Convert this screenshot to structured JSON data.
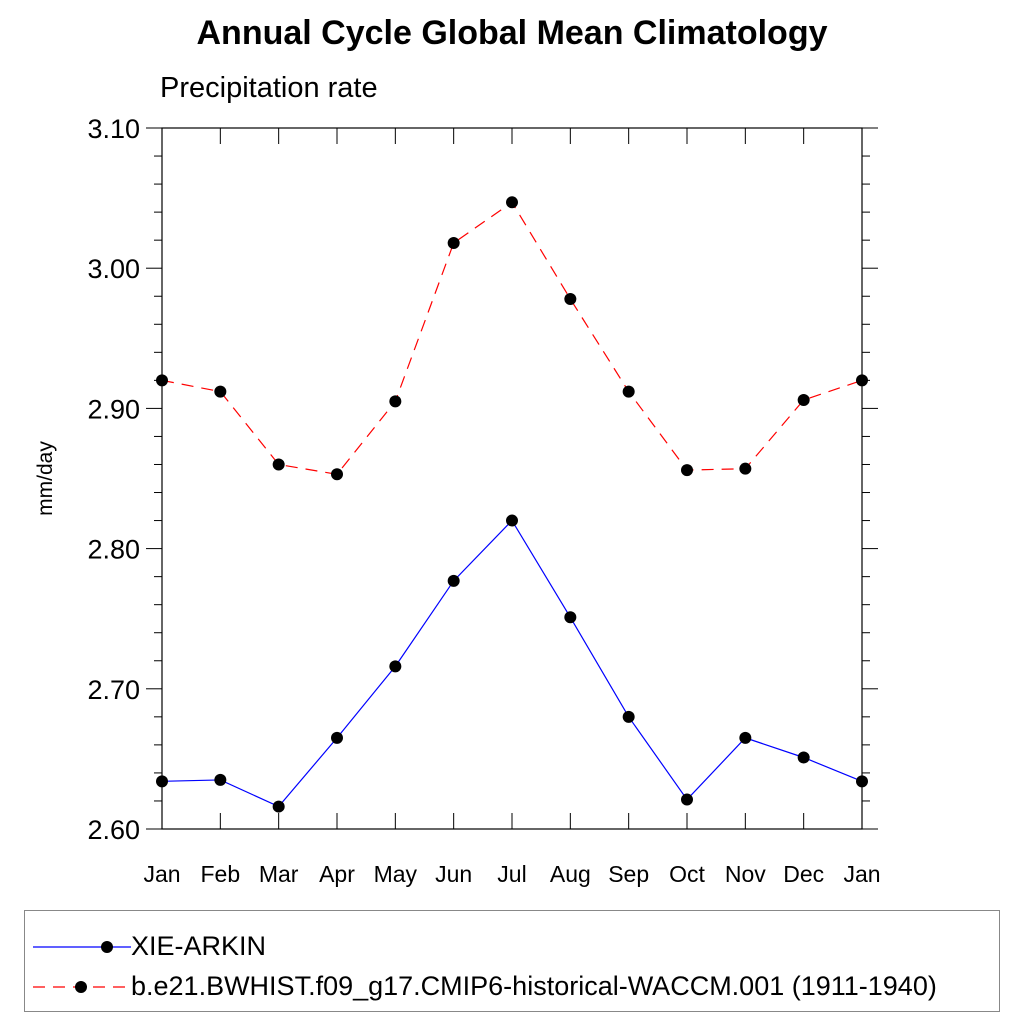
{
  "title": "Annual Cycle Global Mean Climatology",
  "subtitle": "Precipitation rate",
  "chart_data": {
    "type": "line",
    "title": "Annual Cycle Global Mean Climatology",
    "subtitle": "Precipitation rate",
    "xlabel": "",
    "ylabel": "mm/day",
    "categories": [
      "Jan",
      "Feb",
      "Mar",
      "Apr",
      "May",
      "Jun",
      "Jul",
      "Aug",
      "Sep",
      "Oct",
      "Nov",
      "Dec",
      "Jan"
    ],
    "ylim": [
      2.6,
      3.1
    ],
    "yticks": [
      "2.60",
      "2.70",
      "2.80",
      "2.90",
      "3.00",
      "3.10"
    ],
    "series": [
      {
        "name": "XIE-ARKIN",
        "color": "#0000ff",
        "dash": "solid",
        "values": [
          2.634,
          2.635,
          2.616,
          2.665,
          2.716,
          2.777,
          2.82,
          2.751,
          2.68,
          2.621,
          2.665,
          2.651,
          2.634
        ]
      },
      {
        "name": "b.e21.BWHIST.f09_g17.CMIP6-historical-WACCM.001 (1911-1940)",
        "color": "#ff0000",
        "dash": "dashed",
        "values": [
          2.92,
          2.912,
          2.86,
          2.853,
          2.905,
          3.018,
          3.047,
          2.978,
          2.912,
          2.856,
          2.857,
          2.906,
          2.92
        ]
      }
    ],
    "legend_position": "bottom",
    "grid": false
  }
}
